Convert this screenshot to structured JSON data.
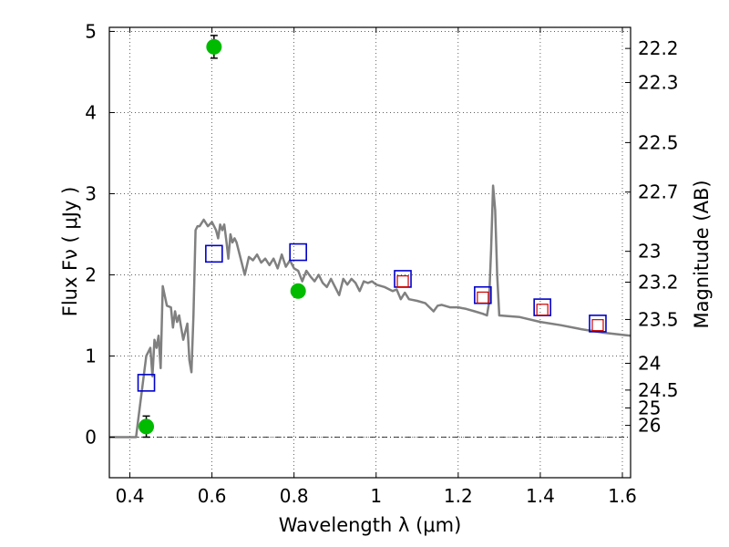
{
  "chart_data": {
    "type": "line",
    "title": "",
    "xlabel": "Wavelength  λ (μm)",
    "ylabel": "Flux  Fν  ( μJy )",
    "y2label": "Magnitude (AB)",
    "xlim": [
      0.35,
      1.62
    ],
    "ylim": [
      -0.5,
      5.05
    ],
    "grid": true,
    "x_ticks": [
      {
        "value": 0.4,
        "label": "0.4"
      },
      {
        "value": 0.6,
        "label": "0.6"
      },
      {
        "value": 0.8,
        "label": "0.8"
      },
      {
        "value": 1.0,
        "label": "1"
      },
      {
        "value": 1.2,
        "label": "1.2"
      },
      {
        "value": 1.4,
        "label": "1.4"
      },
      {
        "value": 1.6,
        "label": "1.6"
      }
    ],
    "y_ticks": [
      {
        "value": 0,
        "label": "0"
      },
      {
        "value": 1,
        "label": "1"
      },
      {
        "value": 2,
        "label": "2"
      },
      {
        "value": 3,
        "label": "3"
      },
      {
        "value": 4,
        "label": "4"
      },
      {
        "value": 5,
        "label": "5"
      }
    ],
    "mag_ticks": [
      {
        "label": "22.2",
        "flux": 4.79
      },
      {
        "label": "22.3",
        "flux": 4.37
      },
      {
        "label": "22.5",
        "flux": 3.63
      },
      {
        "label": "22.7",
        "flux": 3.02
      },
      {
        "label": "23",
        "flux": 2.29
      },
      {
        "label": "23.2",
        "flux": 1.91
      },
      {
        "label": "23.5",
        "flux": 1.45
      },
      {
        "label": "24",
        "flux": 0.91
      },
      {
        "label": "24.5",
        "flux": 0.58
      },
      {
        "label": "25",
        "flux": 0.36
      },
      {
        "label": "26",
        "flux": 0.145
      }
    ],
    "series": [
      {
        "style": "line",
        "color": "#808080",
        "x": [
          0.35,
          0.415,
          0.42,
          0.43,
          0.44,
          0.45,
          0.455,
          0.46,
          0.465,
          0.47,
          0.475,
          0.48,
          0.49,
          0.5,
          0.505,
          0.51,
          0.515,
          0.52,
          0.525,
          0.53,
          0.54,
          0.545,
          0.55,
          0.555,
          0.56,
          0.565,
          0.57,
          0.58,
          0.59,
          0.6,
          0.605,
          0.61,
          0.615,
          0.62,
          0.625,
          0.63,
          0.635,
          0.64,
          0.645,
          0.65,
          0.655,
          0.66,
          0.67,
          0.68,
          0.69,
          0.7,
          0.71,
          0.72,
          0.73,
          0.74,
          0.75,
          0.76,
          0.77,
          0.78,
          0.79,
          0.8,
          0.81,
          0.82,
          0.83,
          0.84,
          0.85,
          0.86,
          0.87,
          0.88,
          0.89,
          0.9,
          0.91,
          0.92,
          0.93,
          0.94,
          0.95,
          0.96,
          0.97,
          0.98,
          0.99,
          1.0,
          1.02,
          1.04,
          1.05,
          1.06,
          1.07,
          1.08,
          1.1,
          1.12,
          1.14,
          1.15,
          1.16,
          1.18,
          1.2,
          1.22,
          1.24,
          1.26,
          1.27,
          1.275,
          1.28,
          1.285,
          1.29,
          1.295,
          1.3,
          1.35,
          1.4,
          1.45,
          1.5,
          1.55,
          1.6,
          1.62
        ],
        "values": [
          0.0,
          0.0,
          0.2,
          0.6,
          1.0,
          1.1,
          0.75,
          1.2,
          1.1,
          1.25,
          0.85,
          1.86,
          1.62,
          1.6,
          1.35,
          1.55,
          1.42,
          1.5,
          1.35,
          1.2,
          1.4,
          0.95,
          0.8,
          1.5,
          2.55,
          2.6,
          2.6,
          2.68,
          2.6,
          2.65,
          2.6,
          2.55,
          2.45,
          2.62,
          2.55,
          2.62,
          2.42,
          2.2,
          2.5,
          2.4,
          2.45,
          2.4,
          2.2,
          2.0,
          2.22,
          2.18,
          2.25,
          2.15,
          2.2,
          2.12,
          2.2,
          2.08,
          2.25,
          2.1,
          2.18,
          2.08,
          2.05,
          1.92,
          2.05,
          1.98,
          1.92,
          2.0,
          1.9,
          1.85,
          1.95,
          1.85,
          1.75,
          1.95,
          1.88,
          1.95,
          1.9,
          1.8,
          1.92,
          1.9,
          1.92,
          1.88,
          1.85,
          1.8,
          1.82,
          1.7,
          1.78,
          1.7,
          1.68,
          1.65,
          1.55,
          1.62,
          1.63,
          1.6,
          1.6,
          1.58,
          1.55,
          1.52,
          1.5,
          1.65,
          2.3,
          3.1,
          2.8,
          2.0,
          1.5,
          1.48,
          1.42,
          1.38,
          1.33,
          1.29,
          1.26,
          1.25
        ]
      },
      {
        "style": "open-square",
        "color": "#0000cc",
        "x": [
          0.44,
          0.605,
          0.81,
          1.065,
          1.26,
          1.405,
          1.54
        ],
        "values": [
          0.67,
          2.26,
          2.28,
          1.95,
          1.75,
          1.6,
          1.4
        ]
      },
      {
        "style": "open-square-small",
        "color": "#cc0000",
        "x": [
          1.065,
          1.26,
          1.405,
          1.54
        ],
        "values": [
          1.92,
          1.72,
          1.57,
          1.38
        ]
      },
      {
        "style": "filled-circle",
        "color": "#00bb00",
        "x": [
          0.44,
          0.605,
          0.81
        ],
        "values": [
          0.13,
          4.81,
          1.8
        ],
        "errors": [
          0.13,
          0.14,
          0.07
        ]
      }
    ]
  }
}
